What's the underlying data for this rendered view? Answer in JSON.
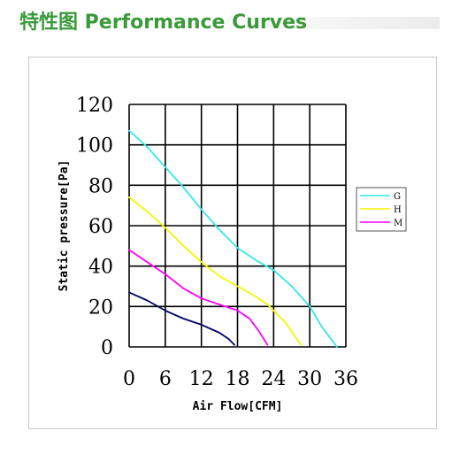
{
  "header": {
    "title": "特性图  Performance Curves"
  },
  "chart_data": {
    "type": "line",
    "xlabel": "Air Flow[CFM]",
    "ylabel": "Static pressure[Pa]",
    "xlim": [
      0,
      36
    ],
    "ylim": [
      0,
      120
    ],
    "xticks": [
      0,
      6,
      12,
      18,
      24,
      30,
      36
    ],
    "yticks": [
      0,
      20,
      40,
      60,
      80,
      100,
      120
    ],
    "grid": true,
    "legend_position": "right",
    "series": [
      {
        "name": "G",
        "color": "#33e8e8",
        "points": [
          [
            0,
            107
          ],
          [
            3,
            99
          ],
          [
            6,
            89
          ],
          [
            9,
            79
          ],
          [
            12,
            68
          ],
          [
            15,
            58
          ],
          [
            18,
            49
          ],
          [
            21,
            43
          ],
          [
            24,
            38
          ],
          [
            27,
            30
          ],
          [
            30,
            20
          ],
          [
            32,
            10
          ],
          [
            34.5,
            0
          ]
        ]
      },
      {
        "name": "H",
        "color": "#f5f500",
        "points": [
          [
            0,
            74
          ],
          [
            3,
            67
          ],
          [
            6,
            59
          ],
          [
            9,
            50
          ],
          [
            12,
            42
          ],
          [
            15,
            35
          ],
          [
            18,
            30
          ],
          [
            21,
            25
          ],
          [
            23,
            21
          ],
          [
            26,
            12
          ],
          [
            28.5,
            1
          ]
        ]
      },
      {
        "name": "M",
        "color": "#ff00ff",
        "points": [
          [
            0,
            48
          ],
          [
            3,
            42
          ],
          [
            6,
            36
          ],
          [
            9,
            29
          ],
          [
            12,
            24
          ],
          [
            15,
            21
          ],
          [
            18,
            18
          ],
          [
            20,
            14
          ],
          [
            21.5,
            8
          ],
          [
            23,
            1
          ]
        ]
      },
      {
        "name": "",
        "color": "#000066",
        "points": [
          [
            0,
            27
          ],
          [
            3,
            23
          ],
          [
            6,
            18
          ],
          [
            9,
            14
          ],
          [
            12,
            11
          ],
          [
            15,
            7
          ],
          [
            16.5,
            4
          ],
          [
            17.5,
            1
          ]
        ]
      }
    ]
  }
}
